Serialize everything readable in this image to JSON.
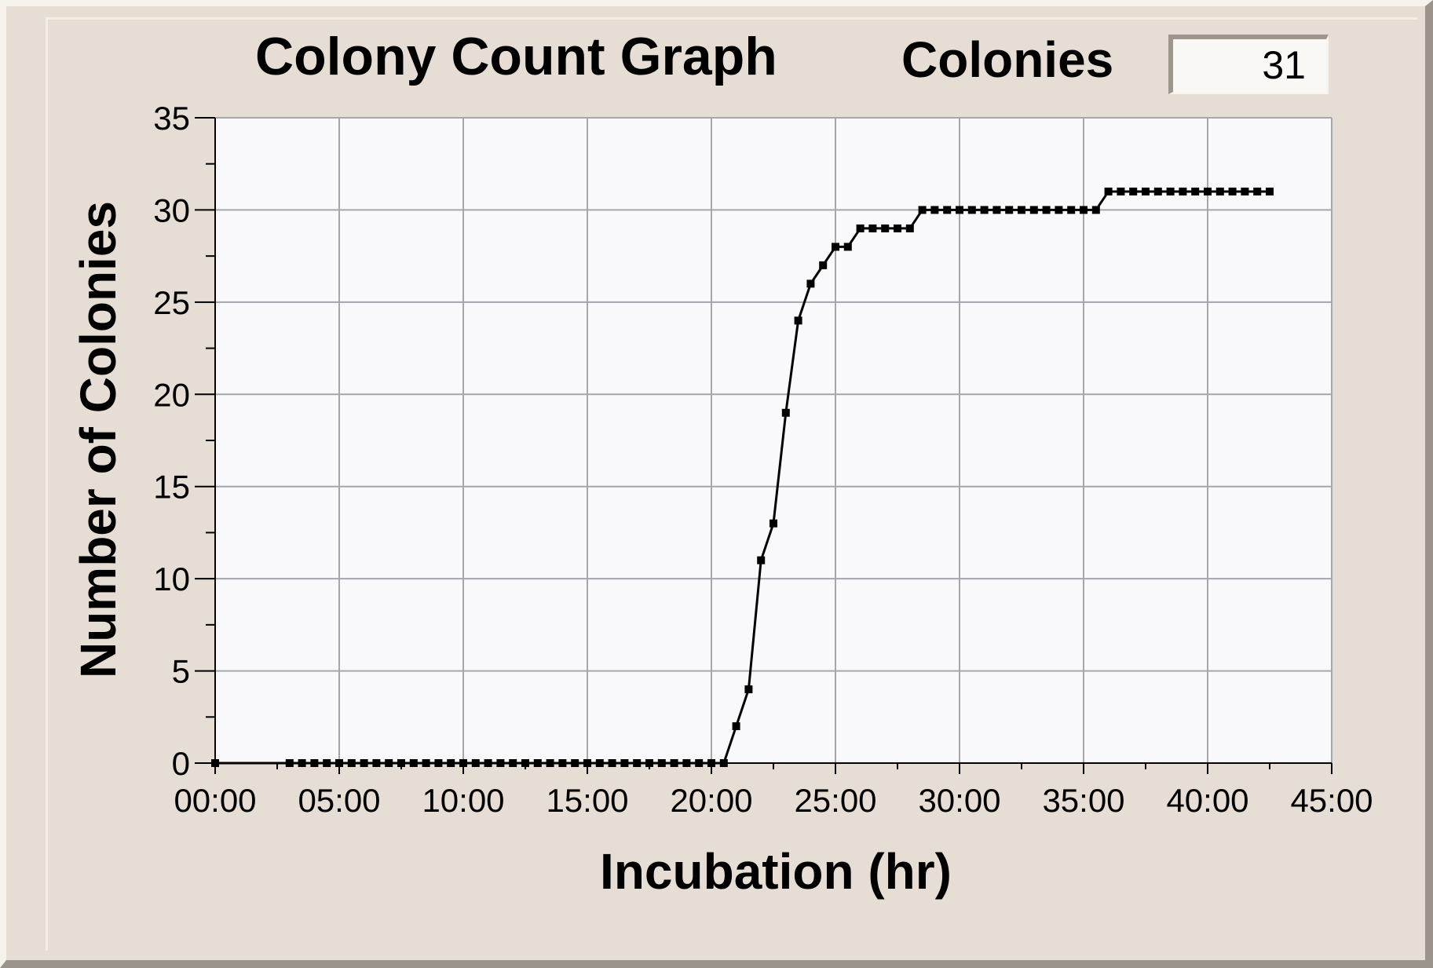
{
  "title": "Colony Count Graph",
  "indicator": {
    "label": "Colonies",
    "value": "31"
  },
  "colors": {
    "panel": "#e6ded4",
    "plot_background": "#f9f9fc",
    "grid": "#a6a6ac",
    "line": "#000000"
  },
  "chart_data": {
    "type": "line",
    "title": "Colony Count Graph",
    "xlabel": "Incubation (hr)",
    "ylabel": "Number of Colonies",
    "xlim": [
      0,
      45
    ],
    "ylim": [
      0,
      35
    ],
    "x_ticks": [
      0,
      5,
      10,
      15,
      20,
      25,
      30,
      35,
      40,
      45
    ],
    "x_tick_labels": [
      "00:00",
      "05:00",
      "10:00",
      "15:00",
      "20:00",
      "25:00",
      "30:00",
      "35:00",
      "40:00",
      "45:00"
    ],
    "y_ticks": [
      0,
      5,
      10,
      15,
      20,
      25,
      30,
      35
    ],
    "y_tick_labels": [
      "0",
      "5",
      "10",
      "15",
      "20",
      "25",
      "30",
      "35"
    ],
    "grid": true,
    "markers": true,
    "series": [
      {
        "x": [
          0,
          3.0,
          3.5,
          4.0,
          4.5,
          5.0,
          5.5,
          6.0,
          6.5,
          7.0,
          7.5,
          8.0,
          8.5,
          9.0,
          9.5,
          10.0,
          10.5,
          11.0,
          11.5,
          12.0,
          12.5,
          13.0,
          13.5,
          14.0,
          14.5,
          15.0,
          15.5,
          16.0,
          16.5,
          17.0,
          17.5,
          18.0,
          18.5,
          19.0,
          19.5,
          20.0,
          20.5,
          21.0,
          21.5,
          22.0,
          22.5,
          23.0,
          23.5,
          24.0,
          24.5,
          25.0,
          25.5,
          26.0,
          26.5,
          27.0,
          27.5,
          28.0,
          28.5,
          29.0,
          29.5,
          30.0,
          30.5,
          31.0,
          31.5,
          32.0,
          32.5,
          33.0,
          33.5,
          34.0,
          34.5,
          35.0,
          35.5,
          36.0,
          36.5,
          37.0,
          37.5,
          38.0,
          38.5,
          39.0,
          39.5,
          40.0,
          40.5,
          41.0,
          41.5,
          42.0,
          42.5
        ],
        "y": [
          0,
          0,
          0,
          0,
          0,
          0,
          0,
          0,
          0,
          0,
          0,
          0,
          0,
          0,
          0,
          0,
          0,
          0,
          0,
          0,
          0,
          0,
          0,
          0,
          0,
          0,
          0,
          0,
          0,
          0,
          0,
          0,
          0,
          0,
          0,
          0,
          0,
          2,
          4,
          11,
          13,
          19,
          24,
          26,
          27,
          28,
          28,
          29,
          29,
          29,
          29,
          29,
          30,
          30,
          30,
          30,
          30,
          30,
          30,
          30,
          30,
          30,
          30,
          30,
          30,
          30,
          30,
          31,
          31,
          31,
          31,
          31,
          31,
          31,
          31,
          31,
          31,
          31,
          31,
          31,
          31
        ]
      }
    ]
  }
}
